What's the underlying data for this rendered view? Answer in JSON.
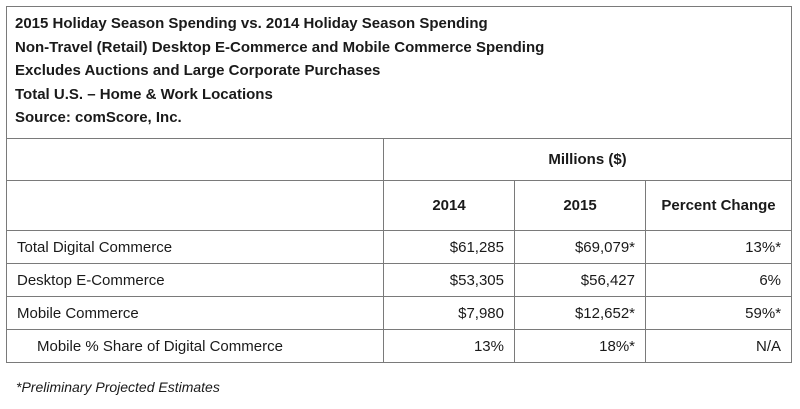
{
  "header": {
    "line1": "2015 Holiday Season Spending vs. 2014 Holiday Season Spending",
    "line2": "Non-Travel (Retail) Desktop E-Commerce and Mobile Commerce Spending",
    "line3": "Excludes Auctions and Large Corporate Purchases",
    "line4": "Total U.S. – Home & Work Locations",
    "line5": "Source: comScore, Inc."
  },
  "table": {
    "units_label": "Millions ($)",
    "columns": [
      "2014",
      "2015",
      "Percent Change"
    ],
    "rows": [
      {
        "label": "Total Digital Commerce",
        "v2014": "$61,285",
        "v2015": "$69,079*",
        "change": "13%*"
      },
      {
        "label": "Desktop E-Commerce",
        "v2014": "$53,305",
        "v2015": "$56,427",
        "change": "6%"
      },
      {
        "label": "Mobile Commerce",
        "v2014": "$7,980",
        "v2015": "$12,652*",
        "change": "59%*"
      },
      {
        "label": "Mobile % Share of Digital Commerce",
        "v2014": "13%",
        "v2015": "18%*",
        "change": "N/A"
      }
    ]
  },
  "footnote": "*Preliminary Projected Estimates"
}
